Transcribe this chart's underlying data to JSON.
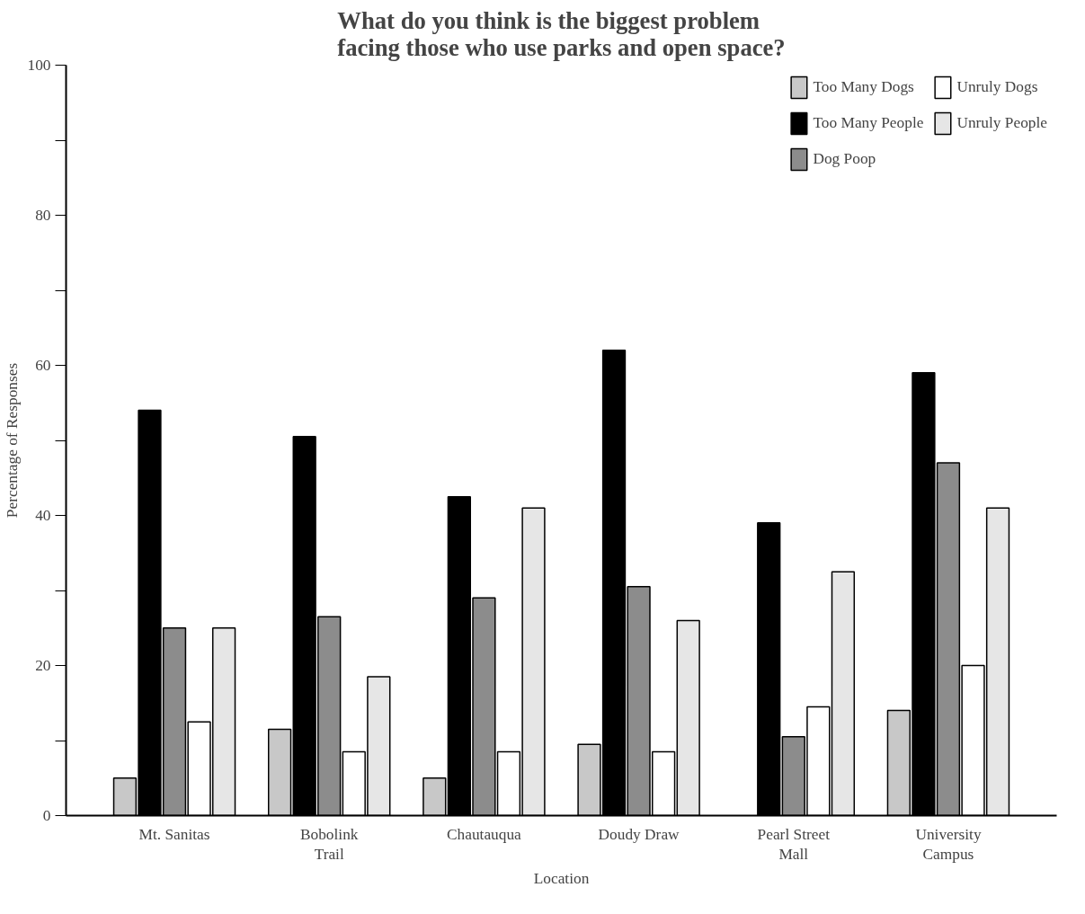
{
  "chart_data": {
    "type": "bar",
    "title": "What do you think is the biggest problem\nfacing those who use parks and open space?",
    "xlabel": "Location",
    "ylabel": "Percentage of Responses",
    "categories": [
      "Mt. Sanitas",
      "Bobolink\nTrail",
      "Chautauqua",
      "Doudy Draw",
      "Pearl Street\nMall",
      "University\nCampus"
    ],
    "series": [
      {
        "name": "Too Many Dogs",
        "color": "#c8c8c8",
        "values": [
          5,
          11.5,
          5,
          9.5,
          null,
          14
        ]
      },
      {
        "name": "Too Many People",
        "color": "#000000",
        "values": [
          54,
          50.5,
          42.5,
          62,
          39,
          59
        ]
      },
      {
        "name": "Dog Poop",
        "color": "#8c8c8c",
        "values": [
          25,
          26.5,
          29,
          30.5,
          10.5,
          47
        ]
      },
      {
        "name": "Unruly Dogs",
        "color": "#ffffff",
        "values": [
          12.5,
          8.5,
          8.5,
          8.5,
          14.5,
          20
        ]
      },
      {
        "name": "Unruly People",
        "color": "#e6e6e6",
        "values": [
          25,
          18.5,
          41,
          26,
          32.5,
          41
        ]
      }
    ],
    "ylim": [
      0,
      100
    ],
    "yticks": [
      0,
      {
        "value": 10,
        "label": null
      },
      20,
      {
        "value": 30,
        "label": null
      },
      40,
      {
        "value": 50,
        "label": null
      },
      60,
      {
        "value": 70,
        "label": null
      },
      80,
      {
        "value": 90,
        "label": null
      },
      100
    ],
    "grid": false,
    "legend": "top right"
  }
}
